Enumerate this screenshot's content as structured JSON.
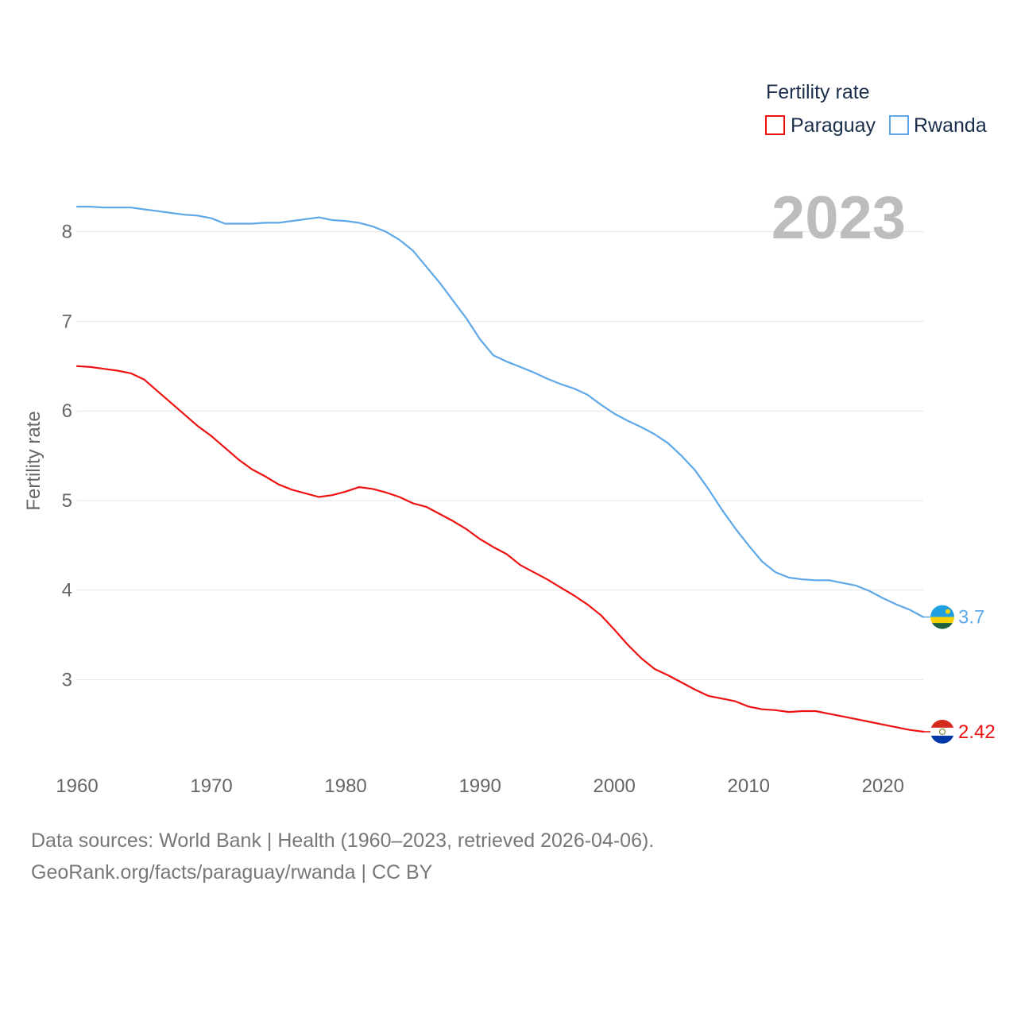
{
  "chart_data": {
    "type": "line",
    "title": "Fertility rate",
    "year_label": "2023",
    "xlabel": "",
    "ylabel": "Fertility rate",
    "xlim": [
      1960,
      2023
    ],
    "ylim": [
      2.1,
      8.6
    ],
    "x_ticks": [
      1960,
      1970,
      1980,
      1990,
      2000,
      2010,
      2020
    ],
    "y_ticks": [
      3,
      4,
      5,
      6,
      7,
      8
    ],
    "grid": true,
    "legend_position": "top-right",
    "x": [
      1960,
      1961,
      1962,
      1963,
      1964,
      1965,
      1966,
      1967,
      1968,
      1969,
      1970,
      1971,
      1972,
      1973,
      1974,
      1975,
      1976,
      1977,
      1978,
      1979,
      1980,
      1981,
      1982,
      1983,
      1984,
      1985,
      1986,
      1987,
      1988,
      1989,
      1990,
      1991,
      1992,
      1993,
      1994,
      1995,
      1996,
      1997,
      1998,
      1999,
      2000,
      2001,
      2002,
      2003,
      2004,
      2005,
      2006,
      2007,
      2008,
      2009,
      2010,
      2011,
      2012,
      2013,
      2014,
      2015,
      2016,
      2017,
      2018,
      2019,
      2020,
      2021,
      2022,
      2023
    ],
    "series": [
      {
        "name": "Paraguay",
        "color": "#ee1111",
        "end_label": "2.42",
        "flag": "paraguay-flag",
        "values": [
          6.5,
          6.49,
          6.47,
          6.45,
          6.42,
          6.35,
          6.22,
          6.09,
          5.96,
          5.83,
          5.72,
          5.59,
          5.46,
          5.35,
          5.27,
          5.18,
          5.12,
          5.08,
          5.04,
          5.06,
          5.1,
          5.15,
          5.13,
          5.09,
          5.04,
          4.97,
          4.93,
          4.85,
          4.77,
          4.68,
          4.57,
          4.48,
          4.4,
          4.28,
          4.2,
          4.12,
          4.03,
          3.94,
          3.84,
          3.72,
          3.56,
          3.39,
          3.24,
          3.12,
          3.05,
          2.97,
          2.89,
          2.82,
          2.79,
          2.76,
          2.7,
          2.67,
          2.66,
          2.64,
          2.65,
          2.65,
          2.62,
          2.59,
          2.56,
          2.53,
          2.5,
          2.47,
          2.44,
          2.42
        ]
      },
      {
        "name": "Rwanda",
        "color": "#5ea8e8",
        "end_label": "3.7",
        "flag": "rwanda-flag",
        "values": [
          8.28,
          8.28,
          8.27,
          8.27,
          8.27,
          8.25,
          8.23,
          8.21,
          8.19,
          8.18,
          8.15,
          8.09,
          8.09,
          8.09,
          8.1,
          8.1,
          8.12,
          8.14,
          8.16,
          8.13,
          8.12,
          8.1,
          8.06,
          8.0,
          7.91,
          7.79,
          7.61,
          7.43,
          7.23,
          7.03,
          6.8,
          6.62,
          6.55,
          6.49,
          6.43,
          6.36,
          6.3,
          6.25,
          6.18,
          6.07,
          5.97,
          5.89,
          5.82,
          5.74,
          5.64,
          5.5,
          5.34,
          5.13,
          4.9,
          4.69,
          4.5,
          4.32,
          4.2,
          4.14,
          4.12,
          4.11,
          4.11,
          4.08,
          4.05,
          3.99,
          3.91,
          3.84,
          3.78,
          3.7
        ]
      }
    ]
  },
  "footer": {
    "line1": "Data sources: World Bank | Health (1960–2023, retrieved 2026-04-06).",
    "line2": "GeoRank.org/facts/paraguay/rwanda | CC BY"
  }
}
